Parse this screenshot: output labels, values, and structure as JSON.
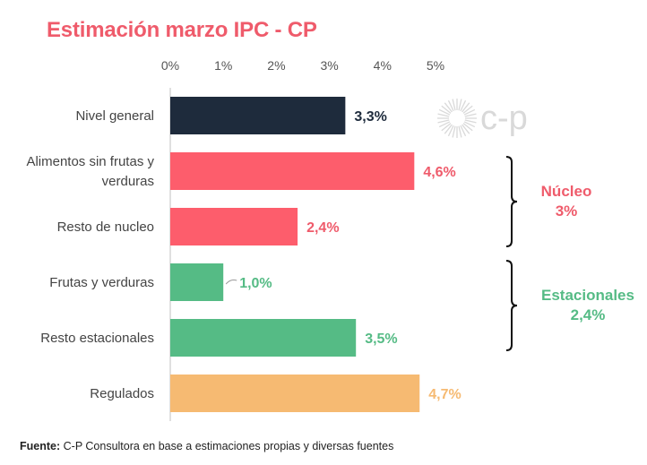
{
  "title": "Estimación marzo IPC - CP",
  "logo_text": "c-p",
  "footer": {
    "label": "Fuente:",
    "text": "C-P Consultora en base a estimaciones propias y diversas fuentes"
  },
  "groups": [
    {
      "name": "Núcleo",
      "value": "3%",
      "color": "#ef5b6b"
    },
    {
      "name": "Estacionales",
      "value": "2,4%",
      "color": "#55bb85"
    }
  ],
  "chart_data": {
    "type": "bar",
    "orientation": "horizontal",
    "xlim": [
      0,
      5
    ],
    "xticks": [
      "0%",
      "1%",
      "2%",
      "3%",
      "4%",
      "5%"
    ],
    "categories": [
      [
        "Nivel general"
      ],
      [
        "Alimentos sin frutas y",
        "verduras"
      ],
      [
        "Resto de nucleo"
      ],
      [
        "Frutas y verduras"
      ],
      [
        "Resto estacionales"
      ],
      [
        "Regulados"
      ]
    ],
    "values": [
      3.3,
      4.6,
      2.4,
      1.0,
      3.5,
      4.7
    ],
    "value_labels": [
      "3,3%",
      "4,6%",
      "2,4%",
      "1,0%",
      "3,5%",
      "4,7%"
    ],
    "colors": [
      "#1e2b3c",
      "#fd5d6c",
      "#fd5d6c",
      "#55bb85",
      "#55bb85",
      "#f6ba72"
    ],
    "label_colors": [
      "#1e2b3c",
      "#ef5b6b",
      "#ef5b6b",
      "#55bb85",
      "#55bb85",
      "#f6ba72"
    ],
    "grid": false
  }
}
